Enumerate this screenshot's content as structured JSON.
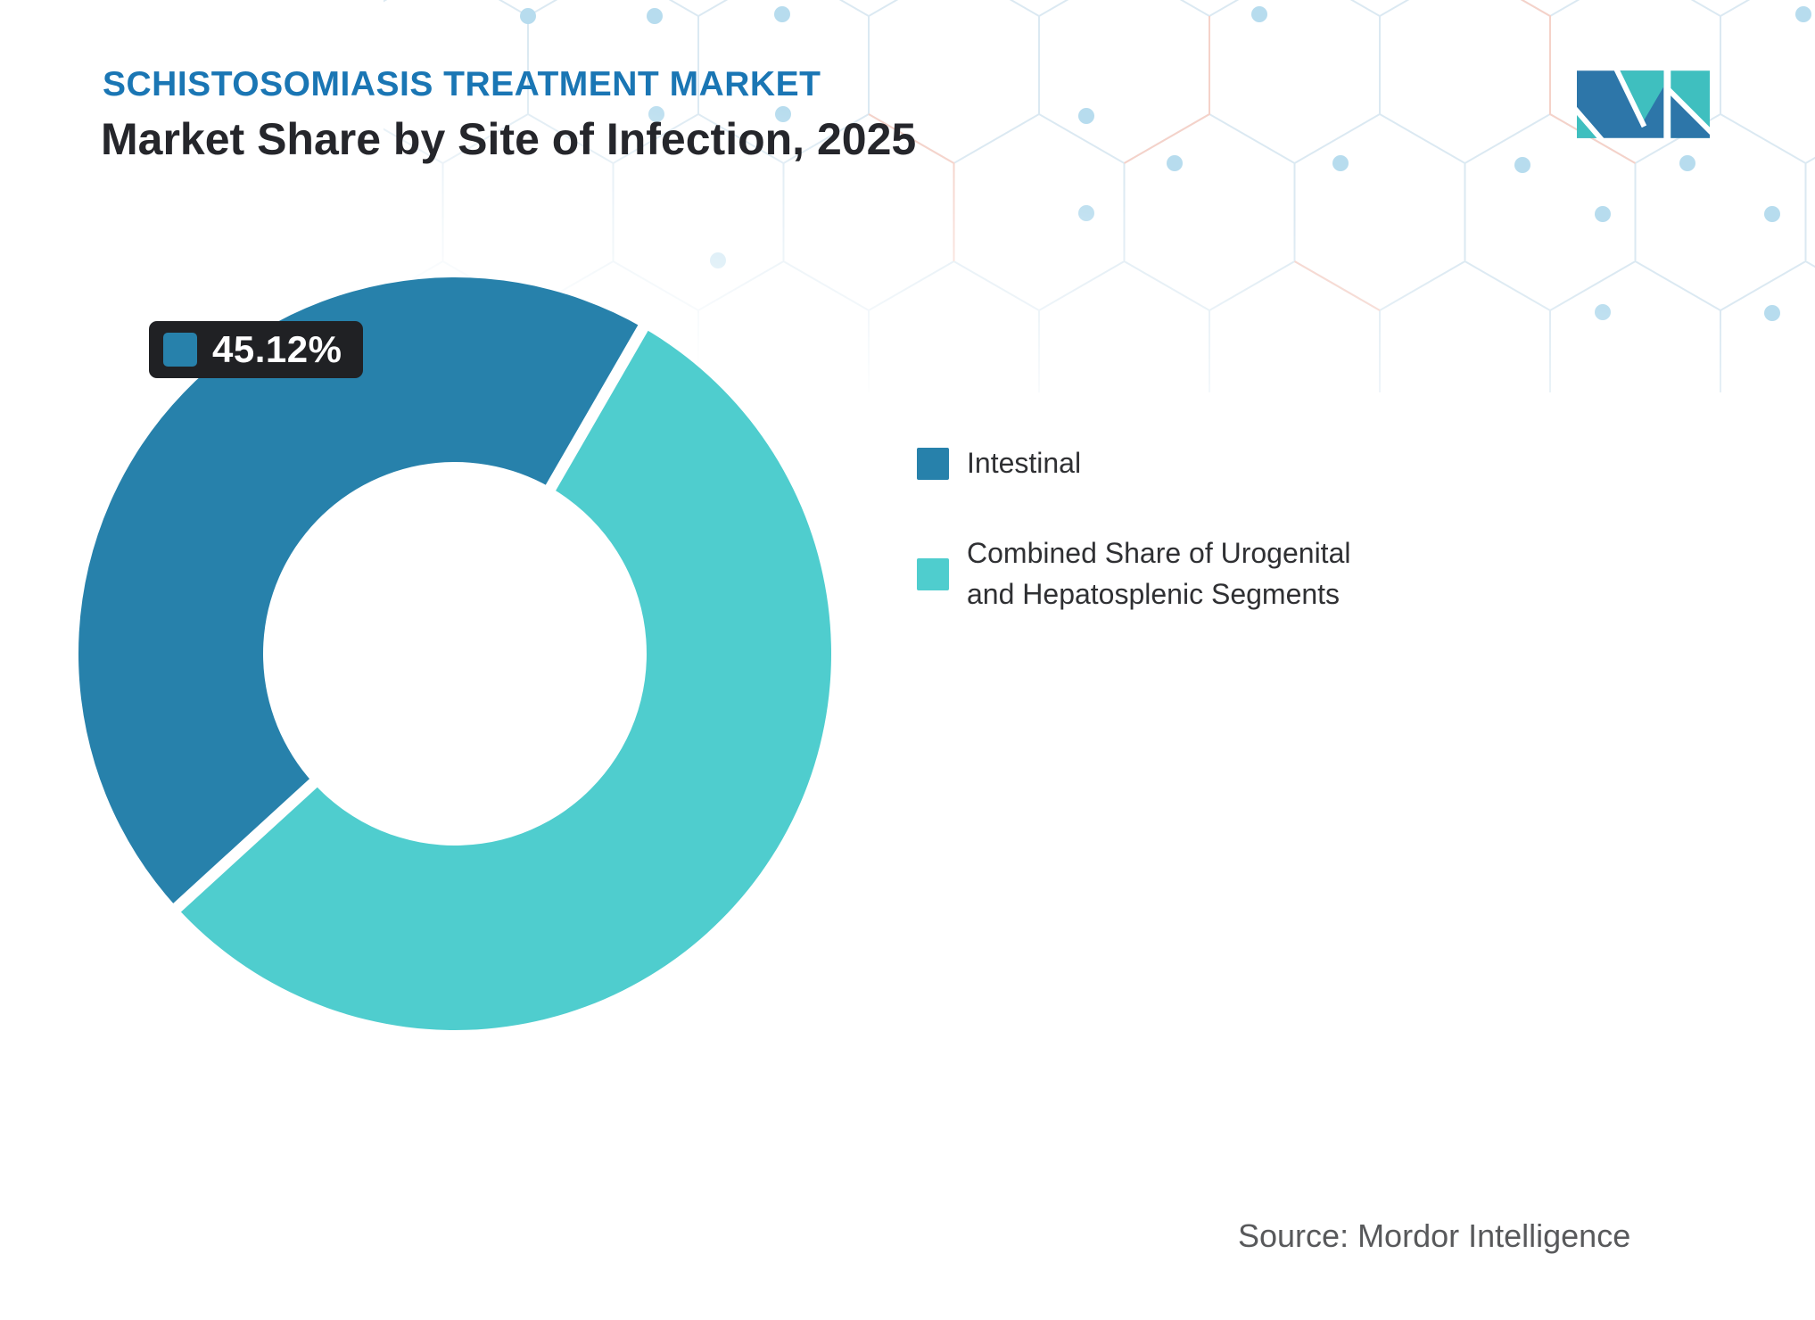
{
  "header": {
    "eyebrow": "SCHISTOSOMIASIS TREATMENT MARKET",
    "title": "Market Share by Site of Infection, 2025"
  },
  "brand": {
    "logo_name": "mordor-intelligence-logo",
    "logo_blue": "#2d76a9",
    "logo_teal": "#3fbfbf"
  },
  "chart_data": {
    "type": "pie",
    "subtype": "donut",
    "title": "Market Share by Site of Infection, 2025",
    "unit": "%",
    "series": [
      {
        "label": "Intestinal",
        "value": 45.12,
        "color": "#2781ab"
      },
      {
        "label": "Combined Share of Urogenital and Hepatosplenic Segments",
        "value": 54.88,
        "color": "#4fcdce"
      }
    ],
    "data_label": {
      "text": "45.12%",
      "series": "Intestinal"
    },
    "legend_position": "right",
    "rotation_deg": -132.43,
    "inner_radius_ratio": 0.51,
    "slice_gap_color": "#ffffff"
  },
  "footer": {
    "source": "Source: Mordor Intelligence"
  },
  "colors": {
    "title_blue": "#1a76b4",
    "text_dark": "#25262b",
    "legend_text": "#2f3033",
    "source_gray": "#58595b",
    "badge_bg": "#202124",
    "pattern_line": "#dbe9f2",
    "pattern_accent": "#f5d2c9",
    "pattern_dot": "#b7dcee"
  }
}
